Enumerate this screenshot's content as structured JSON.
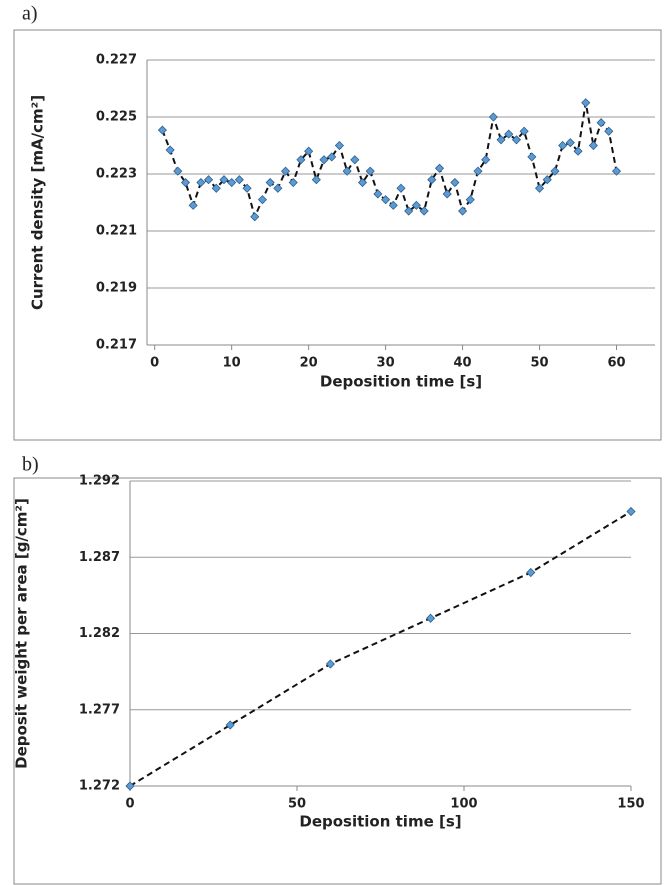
{
  "chart_data": [
    {
      "type": "scatter",
      "label": "a)",
      "x_label": "Deposition time [s]",
      "y_label": "Current density [mA/cm²]",
      "x": [
        1,
        2,
        3,
        4,
        5,
        6,
        7,
        8,
        9,
        10,
        11,
        12,
        13,
        14,
        15,
        16,
        17,
        18,
        19,
        20,
        21,
        22,
        23,
        24,
        25,
        26,
        27,
        28,
        29,
        30,
        31,
        32,
        33,
        34,
        35,
        36,
        37,
        38,
        39,
        40,
        41,
        42,
        43,
        44,
        45,
        46,
        47,
        48,
        49,
        50,
        51,
        52,
        53,
        54,
        55,
        56,
        57,
        58,
        59,
        60
      ],
      "values": [
        0.22454,
        0.22384,
        0.2231,
        0.2227,
        0.2219,
        0.2227,
        0.2228,
        0.2225,
        0.2228,
        0.2227,
        0.2228,
        0.2225,
        0.2215,
        0.2221,
        0.2227,
        0.2225,
        0.2231,
        0.2227,
        0.2235,
        0.2238,
        0.2228,
        0.2235,
        0.2236,
        0.224,
        0.2231,
        0.2235,
        0.2227,
        0.2231,
        0.2223,
        0.2221,
        0.2219,
        0.2225,
        0.2217,
        0.2219,
        0.2217,
        0.2228,
        0.2232,
        0.2223,
        0.2227,
        0.2217,
        0.2221,
        0.2231,
        0.2235,
        0.225,
        0.2242,
        0.2244,
        0.2242,
        0.2245,
        0.2236,
        0.2225,
        0.2228,
        0.2231,
        0.224,
        0.2241,
        0.2238,
        0.2255,
        0.224,
        0.2248,
        0.2245,
        0.2231
      ],
      "color": "#5b9bd5",
      "line": "dashed",
      "xlim": [
        -1,
        65
      ],
      "xticks": [
        0,
        10,
        20,
        30,
        40,
        50,
        60
      ],
      "ylim": [
        0.217,
        0.227
      ],
      "yticks": [
        0.217,
        0.219,
        0.221,
        0.223,
        0.225,
        0.227
      ],
      "grid": true
    },
    {
      "type": "scatter",
      "label": "b)",
      "x_label": "Deposition time [s]",
      "y_label": "Deposit weight per area [g/cm²]",
      "x": [
        0,
        30,
        60,
        90,
        120,
        150
      ],
      "values": [
        1.272,
        1.276,
        1.28,
        1.283,
        1.286,
        1.29
      ],
      "color": "#5b9bd5",
      "line": "dashed",
      "xlim": [
        0,
        150
      ],
      "xticks": [
        0,
        50,
        100,
        150
      ],
      "ylim": [
        1.272,
        1.292
      ],
      "yticks": [
        1.272,
        1.277,
        1.282,
        1.287,
        1.292
      ],
      "grid": true
    }
  ]
}
